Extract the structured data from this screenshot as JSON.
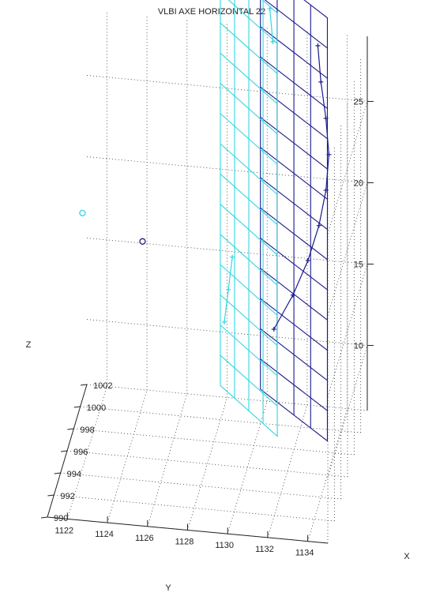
{
  "chart_data": {
    "type": "scatter",
    "subtype": "3d-line",
    "title": "VLBI AXE HORIZONTAL 22",
    "xlabel": "X",
    "ylabel": "Y",
    "zlabel": "Z",
    "x_ticks": [
      "990",
      "992",
      "994",
      "996",
      "998",
      "1000",
      "1002"
    ],
    "y_ticks": [
      "1134",
      "1132",
      "1130",
      "1128",
      "1126",
      "1124",
      "1122"
    ],
    "z_ticks": [
      "10",
      "15",
      "20",
      "25"
    ],
    "xlim": [
      990,
      1002
    ],
    "ylim": [
      1121,
      1135
    ],
    "zlim": [
      6,
      29
    ],
    "grid": "on",
    "colors": {
      "series_a": "#1a1a8c",
      "series_b": "#33d6e0",
      "grid": "#333333"
    },
    "series": [
      {
        "marker": "+",
        "color": "#1a1a8c",
        "points": [
          {
            "x": 1002.2,
            "y": 1132.5,
            "z": 28.0
          },
          {
            "x": 1001.9,
            "y": 1132.7,
            "z": 26.0
          },
          {
            "x": 1001.6,
            "y": 1133.0,
            "z": 24.0
          },
          {
            "x": 1001.3,
            "y": 1133.2,
            "z": 22.0
          },
          {
            "x": 1001.0,
            "y": 1133.1,
            "z": 20.0
          },
          {
            "x": 1000.7,
            "y": 1132.8,
            "z": 18.0
          },
          {
            "x": 1000.4,
            "y": 1132.3,
            "z": 16.0
          },
          {
            "x": 1000.1,
            "y": 1131.6,
            "z": 14.0
          },
          {
            "x": 999.8,
            "y": 1130.7,
            "z": 12.0
          }
        ]
      },
      {
        "marker": "+",
        "color": "#33d6e0",
        "points": [
          {
            "x": 1002.2,
            "y": 1130.1,
            "z": 30.0
          },
          {
            "x": 1001.9,
            "y": 1130.3,
            "z": 28.2
          }
        ]
      },
      {
        "marker": "+",
        "color": "#33d6e0",
        "points": [
          {
            "x": 997.5,
            "y": 1129.0,
            "z": 17.8
          },
          {
            "x": 996.9,
            "y": 1128.9,
            "z": 16.2
          },
          {
            "x": 996.3,
            "y": 1128.8,
            "z": 14.6
          }
        ]
      },
      {
        "marker": "o",
        "color": "#1a1a8c",
        "points": [
          {
            "x": 997.0,
            "y": 1124.6,
            "z": 18.6
          }
        ]
      },
      {
        "marker": "o",
        "color": "#33d6e0",
        "points": [
          {
            "x": 997.0,
            "y": 1121.6,
            "z": 20.0
          }
        ]
      }
    ],
    "planes": [
      {
        "color": "#1a1a8c",
        "y_range": [
          1129.5,
          1133.5
        ],
        "x_range": [
          999,
          1003
        ],
        "z_range": [
          6,
          32
        ]
      },
      {
        "color": "#33d6e0",
        "y_range": [
          1127.5,
          1131.0
        ],
        "x_range": [
          999,
          1003
        ],
        "z_range": [
          6,
          32
        ]
      }
    ]
  }
}
